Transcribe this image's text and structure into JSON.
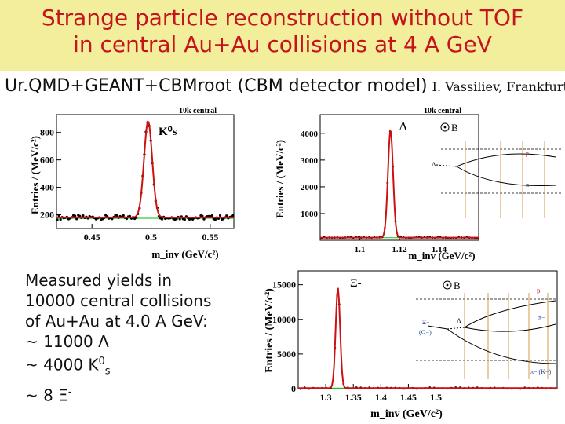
{
  "title": {
    "line1": "Strange particle reconstruction without TOF",
    "line2": "in central Au+Au collisions at 4 A GeV"
  },
  "subtitle": {
    "model": "Ur.QMD+GEANT+CBMroot (CBM detector model)",
    "credit": "I. Vassiliev, Frankfurt"
  },
  "yields": {
    "line1": "Measured yields in",
    "line2": "10000 central collisions",
    "line3": "of Au+Au at 4.0 A GeV:",
    "lambda": "~ 11000 Λ",
    "k0s_prefix": "~   4000 K",
    "k0s_sup": "0",
    "k0s_sub": "s",
    "xi_prefix": "~           8 Ξ",
    "xi_sup": "-"
  },
  "colors": {
    "title_bg": "#f2ee9c",
    "title_text": "#c4141e",
    "fit": "#cc1111",
    "background_fit": "#33cc33",
    "points": "#000000"
  },
  "chart_data": [
    {
      "type": "scatter",
      "id": "k0s",
      "header": "10k central",
      "particle": "K⁰s",
      "ylabel": "Entries / (MeV/c²)",
      "xlabel": "m_inv (GeV/c²)",
      "xlim": [
        0.42,
        0.57
      ],
      "ylim": [
        100,
        930
      ],
      "xticks": [
        0.45,
        0.5,
        0.55
      ],
      "xtick_labels": [
        "0.45",
        "0.5",
        "0.55"
      ],
      "yticks": [
        200,
        400,
        600,
        800
      ],
      "ytick_labels": [
        "200",
        "400",
        "600",
        "800"
      ],
      "peak": {
        "mean": 0.4975,
        "sigma": 0.0035,
        "amplitude": 700,
        "background": 180
      }
    },
    {
      "type": "scatter",
      "id": "lambda",
      "header": "10k central",
      "particle": "Λ",
      "ylabel": "Entries / (MeV/c²)",
      "xlabel": "m_inv (GeV/c²)",
      "xlim": [
        1.08,
        1.16
      ],
      "ylim": [
        0,
        4700
      ],
      "xticks": [
        1.1,
        1.12,
        1.14
      ],
      "xtick_labels": [
        "1.1",
        "1.12",
        "1.14"
      ],
      "yticks": [
        1000,
        2000,
        3000,
        4000
      ],
      "ytick_labels": [
        "1000",
        "2000",
        "3000",
        "4000"
      ],
      "peak": {
        "mean": 1.1155,
        "sigma": 0.0013,
        "amplitude": 4000,
        "background": 100
      },
      "inset": {
        "b_label": "B",
        "lambda_label": "Λ",
        "p_label": "p",
        "pi_label": "π−"
      }
    },
    {
      "type": "scatter",
      "id": "xi",
      "particle": "Ξ-",
      "ylabel": "Entries / (MeV/c²)",
      "xlabel": "m_inv (GeV/c²)",
      "xlim": [
        1.25,
        1.72
      ],
      "ylim": [
        0,
        17000
      ],
      "xticks": [
        1.3,
        1.35,
        1.4,
        1.45,
        1.5
      ],
      "xtick_labels": [
        "1.3",
        "1.35",
        "1.4",
        "1.45",
        "1.5"
      ],
      "yticks": [
        0,
        5000,
        10000,
        15000
      ],
      "ytick_labels": [
        "0",
        "5000",
        "10000",
        "15000"
      ],
      "peak": {
        "mean": 1.322,
        "sigma": 0.004,
        "amplitude": 14500,
        "background": 80
      },
      "inset": {
        "b_label": "B",
        "xi_label": "Ξ−",
        "omega_label": "(Ω−)",
        "lambda_label": "Λ",
        "p_label": "p",
        "pi_label": "π−",
        "pik_label": "π− (K−)"
      }
    }
  ]
}
